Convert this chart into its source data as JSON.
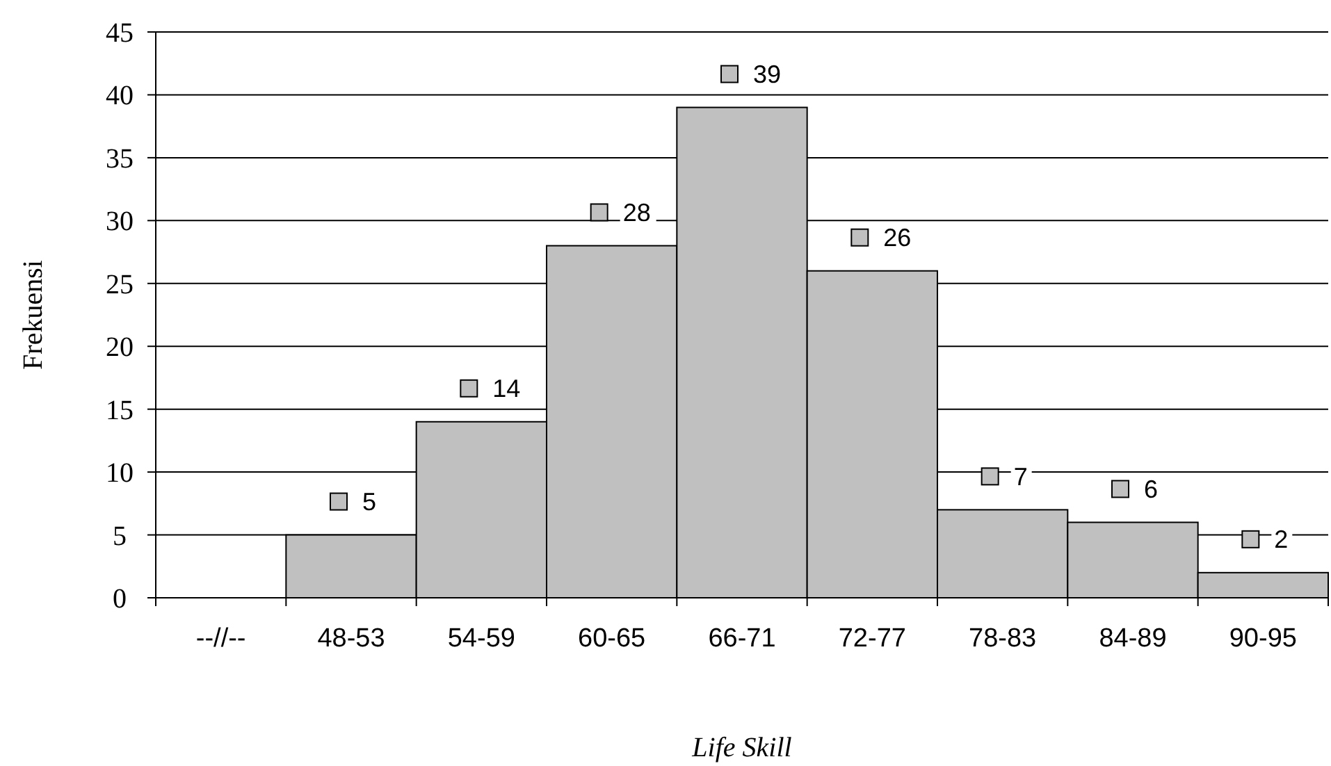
{
  "chart_data": {
    "type": "bar",
    "xlabel": "Life Skill",
    "ylabel": "Frekuensi",
    "categories": [
      "--//--",
      "48-53",
      "54-59",
      "60-65",
      "66-71",
      "72-77",
      "78-83",
      "84-89",
      "90-95"
    ],
    "values": [
      null,
      5,
      14,
      28,
      39,
      26,
      7,
      6,
      2
    ],
    "color": "#c0c0c0",
    "ylim": [
      0,
      45
    ],
    "yticks": [
      0,
      5,
      10,
      15,
      20,
      25,
      30,
      35,
      40,
      45
    ],
    "grid": "y",
    "data_labels": true
  }
}
